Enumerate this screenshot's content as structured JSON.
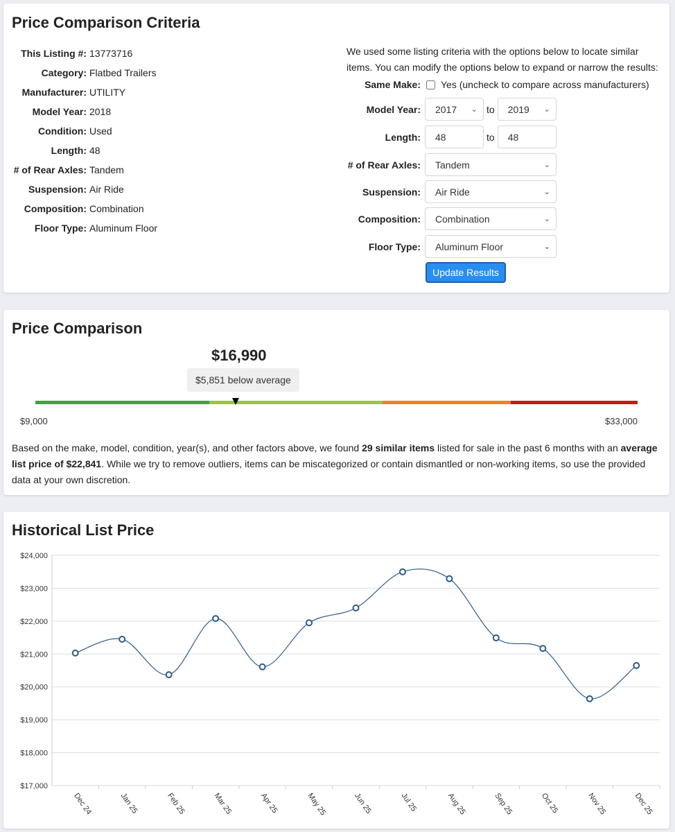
{
  "criteria": {
    "title": "Price Comparison Criteria",
    "details": [
      {
        "label": "This Listing #:",
        "value": "13773716"
      },
      {
        "label": "Category:",
        "value": "Flatbed Trailers"
      },
      {
        "label": "Manufacturer:",
        "value": "UTILITY"
      },
      {
        "label": "Model Year:",
        "value": "2018"
      },
      {
        "label": "Condition:",
        "value": "Used"
      },
      {
        "label": "Length:",
        "value": "48"
      },
      {
        "label": "# of Rear Axles:",
        "value": "Tandem"
      },
      {
        "label": "Suspension:",
        "value": "Air Ride"
      },
      {
        "label": "Composition:",
        "value": "Combination"
      },
      {
        "label": "Floor Type:",
        "value": "Aluminum Floor"
      }
    ],
    "intro": "We used some listing criteria with the options below to locate similar items. You can modify the options below to expand or narrow the results:",
    "same_make_label": "Same Make:",
    "same_make_checked": false,
    "same_make_text": "Yes (uncheck to compare across manufacturers)",
    "model_year_label": "Model Year:",
    "year_from": "2017",
    "year_to": "2019",
    "to": "to",
    "length_label": "Length:",
    "length_from": "48",
    "length_to": "48",
    "axles_label": "# of Rear Axles:",
    "axles": "Tandem",
    "suspension_label": "Suspension:",
    "suspension": "Air Ride",
    "composition_label": "Composition:",
    "composition": "Combination",
    "floor_label": "Floor Type:",
    "floor": "Aluminum Floor",
    "update_button": "Update Results"
  },
  "comparison": {
    "title": "Price Comparison",
    "price": "$16,990",
    "delta": "$5,851 below average",
    "min_label": "$9,000",
    "max_label": "$33,000",
    "range": [
      9000,
      33000
    ],
    "price_value": 16990,
    "segments": [
      {
        "to": 15930,
        "color": "#43a143"
      },
      {
        "to": 22841,
        "color": "#9ac63a"
      },
      {
        "to": 27950,
        "color": "#f47f1e"
      },
      {
        "to": 33000,
        "color": "#c41a1a"
      }
    ],
    "p1": "Based on the make, model, condition, year(s), and other factors above, we found ",
    "p_bold1": "29 similar items",
    "p2": " listed for sale in the past 6 months with an ",
    "p_bold2": "average list price of $22,841",
    "p3": ". While we try to remove outliers, items can be miscategorized or contain dismantled or non-working items, so use the provided data at your own discretion."
  },
  "history": {
    "title": "Historical List Price"
  },
  "chart_data": {
    "type": "line",
    "title": "Historical List Price",
    "categories": [
      "Dec 24",
      "Jan 25",
      "Feb 25",
      "Mar 25",
      "Apr 25",
      "May 25",
      "Jun 25",
      "Jul 25",
      "Aug 25",
      "Sep 25",
      "Oct 25",
      "Nov 25",
      "Dec 25"
    ],
    "values": [
      21030,
      21450,
      20370,
      22080,
      20610,
      21950,
      22400,
      23500,
      23290,
      21490,
      21170,
      19640,
      20650
    ],
    "ylim": [
      17000,
      24000
    ],
    "yticks": [
      "$17,000",
      "$18,000",
      "$19,000",
      "$20,000",
      "$21,000",
      "$22,000",
      "$23,000",
      "$24,000"
    ],
    "xlabel": "",
    "ylabel": "",
    "grid": true,
    "line_color": "#2d5a86"
  }
}
